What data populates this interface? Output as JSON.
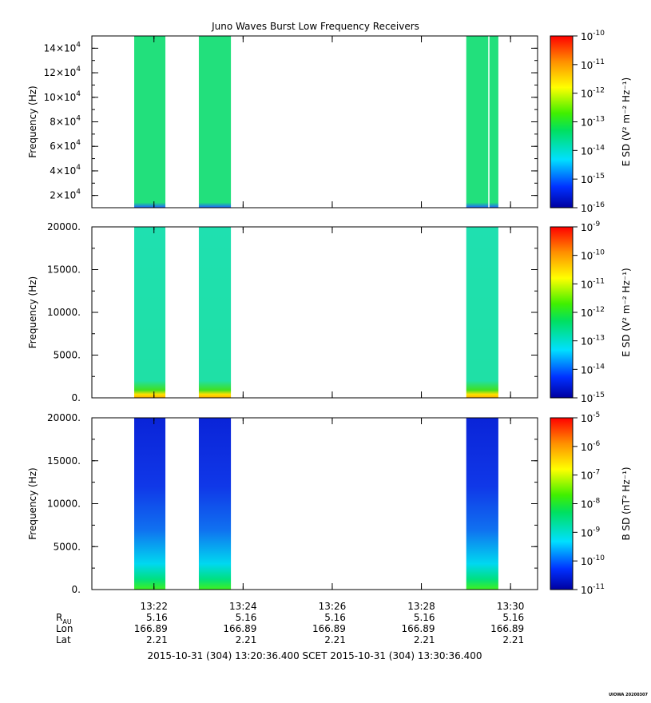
{
  "chart_data": {
    "title": "Juno Waves Burst Low Frequency Receivers",
    "type": "heatmap",
    "x_range": [
      "13:20:36.400",
      "13:30:36.400"
    ],
    "x_ticks": [
      {
        "t": "13:22",
        "m": 1.3933
      },
      {
        "t": "13:24",
        "m": 3.3933
      },
      {
        "t": "13:26",
        "m": 5.3933
      },
      {
        "t": "13:28",
        "m": 7.3933
      },
      {
        "t": "13:30",
        "m": 9.3933
      }
    ],
    "data_blocks_min": [
      [
        0.95,
        1.65
      ],
      [
        2.4,
        3.12
      ],
      [
        8.4,
        9.12
      ]
    ],
    "panels": [
      {
        "ylabel": "Frequency (Hz)",
        "ylim": [
          10000,
          150000
        ],
        "yticks": [
          {
            "v": 20000,
            "m": "2×10",
            "e": "4"
          },
          {
            "v": 40000,
            "m": "4×10",
            "e": "4"
          },
          {
            "v": 60000,
            "m": "6×10",
            "e": "4"
          },
          {
            "v": 80000,
            "m": "8×10",
            "e": "4"
          },
          {
            "v": 100000,
            "m": "10×10",
            "e": "4"
          },
          {
            "v": 120000,
            "m": "12×10",
            "e": "4"
          },
          {
            "v": 140000,
            "m": "14×10",
            "e": "4"
          }
        ],
        "cb_label": "E SD (V² m⁻² Hz⁻¹)",
        "cb_ticks": [
          "-10",
          "-11",
          "-12",
          "-13",
          "-14",
          "-15",
          "-16"
        ],
        "fill": "#22e07c",
        "profile": "flat"
      },
      {
        "ylabel": "Frequency (Hz)",
        "ylim": [
          0,
          20000
        ],
        "yticks": [
          {
            "v": 0,
            "t": "0."
          },
          {
            "v": 5000,
            "t": "5000."
          },
          {
            "v": 10000,
            "t": "10000."
          },
          {
            "v": 15000,
            "t": "15000."
          },
          {
            "v": 20000,
            "t": "20000."
          }
        ],
        "cb_label": "E SD (V² m⁻² Hz⁻¹)",
        "cb_ticks": [
          "-9",
          "-10",
          "-11",
          "-12",
          "-13",
          "-14",
          "-15"
        ],
        "fill": "#1fe0a6",
        "profile": "bottom-hot"
      },
      {
        "ylabel": "Frequency (Hz)",
        "ylim": [
          0,
          20000
        ],
        "yticks": [
          {
            "v": 0,
            "t": "0."
          },
          {
            "v": 5000,
            "t": "5000."
          },
          {
            "v": 10000,
            "t": "10000."
          },
          {
            "v": 15000,
            "t": "15000."
          },
          {
            "v": 20000,
            "t": "20000."
          }
        ],
        "cb_label": "B SD (nT² Hz⁻¹)",
        "cb_ticks": [
          "-5",
          "-6",
          "-7",
          "-8",
          "-9",
          "-10",
          "-11"
        ],
        "fill": "#1030e8",
        "profile": "gradient"
      }
    ],
    "ephemeris": [
      {
        "label": "R",
        "sub": "AU",
        "values": [
          "5.16",
          "5.16",
          "5.16",
          "5.16",
          "5.16"
        ]
      },
      {
        "label": "Lon",
        "values": [
          "166.89",
          "166.89",
          "166.89",
          "166.89",
          "166.89"
        ]
      },
      {
        "label": "Lat",
        "values": [
          "2.21",
          "2.21",
          "2.21",
          "2.21",
          "2.21"
        ]
      }
    ],
    "time_range_label": "2015-10-31 (304) 13:20:36.400    SCET    2015-10-31 (304) 13:30:36.400",
    "footer": "UIOWA 20200307"
  }
}
